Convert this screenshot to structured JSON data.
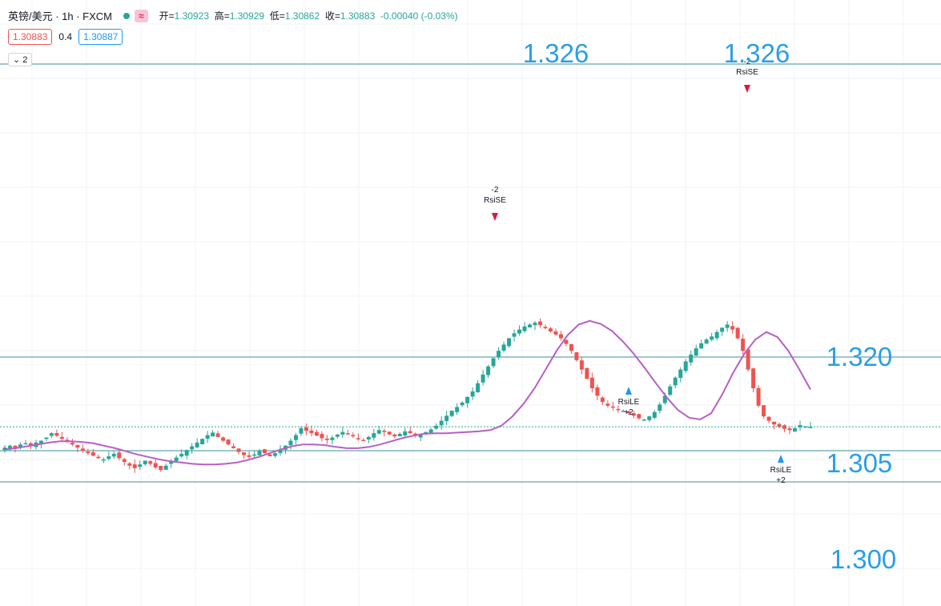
{
  "header": {
    "symbol": "英镑/美元 · 1h · FXCM",
    "open_label": "开=",
    "open": "1.30923",
    "high_label": "高=",
    "high": "1.30929",
    "low_label": "低=",
    "low": "1.30862",
    "close_label": "收=",
    "close": "1.30883",
    "change": "-0.00040 (-0.03%)",
    "approx_icon": "≈",
    "status_icon": "green-dot-icon"
  },
  "quote": {
    "bid": "1.30883",
    "spread": "0.4",
    "ask": "1.30887"
  },
  "indicator_toggle": {
    "label": "2",
    "icon": "chevron-down-icon"
  },
  "colors": {
    "up": "#26a69a",
    "down": "#ef5350",
    "ma": "#b75fc4",
    "level_line": "#3a8f9c",
    "label": "#2a9ee6",
    "signal_short": "#e0173d",
    "signal_long": "#2196f3"
  },
  "chart_data": {
    "type": "candlestick",
    "level_labels": [
      "1.326",
      "1.326",
      "1.320",
      "1.305",
      "1.300"
    ],
    "price_levels": [
      1.326,
      1.32,
      1.305,
      1.3
    ],
    "close_series": [
      1.3055,
      1.3058,
      1.3054,
      1.306,
      1.3062,
      1.3058,
      1.3063,
      1.3066,
      1.3071,
      1.3078,
      1.3074,
      1.3069,
      1.3065,
      1.306,
      1.3055,
      1.305,
      1.3046,
      1.3042,
      1.3038,
      1.3036,
      1.3041,
      1.3045,
      1.3038,
      1.3032,
      1.3026,
      1.3022,
      1.3028,
      1.3034,
      1.3029,
      1.3023,
      1.3019,
      1.3026,
      1.3033,
      1.3039,
      1.3045,
      1.3051,
      1.3057,
      1.3063,
      1.3069,
      1.3075,
      1.3079,
      1.3072,
      1.3066,
      1.306,
      1.3054,
      1.3048,
      1.3043,
      1.304,
      1.3044,
      1.305,
      1.3046,
      1.3041,
      1.3046,
      1.3052,
      1.3058,
      1.3066,
      1.3075,
      1.3086,
      1.3082,
      1.3078,
      1.3074,
      1.307,
      1.3067,
      1.3071,
      1.3076,
      1.308,
      1.3077,
      1.3073,
      1.307,
      1.3067,
      1.3072,
      1.3078,
      1.3083,
      1.308,
      1.3076,
      1.3073,
      1.3077,
      1.3081,
      1.3078,
      1.3074,
      1.3077,
      1.308,
      1.3084,
      1.309,
      1.3098,
      1.3106,
      1.3114,
      1.312,
      1.3127,
      1.3136,
      1.3145,
      1.3158,
      1.3172,
      1.3185,
      1.3198,
      1.321,
      1.322,
      1.323,
      1.3238,
      1.3244,
      1.3249,
      1.3252,
      1.3255,
      1.3251,
      1.3246,
      1.3241,
      1.3236,
      1.323,
      1.3221,
      1.321,
      1.3195,
      1.318,
      1.3165,
      1.315,
      1.3138,
      1.3128,
      1.3122,
      1.3119,
      1.3116,
      1.3114,
      1.311,
      1.3106,
      1.3102,
      1.31,
      1.3105,
      1.3112,
      1.3124,
      1.3138,
      1.3153,
      1.3167,
      1.318,
      1.3193,
      1.3204,
      1.3214,
      1.3222,
      1.3228,
      1.3233,
      1.324,
      1.3247,
      1.3252,
      1.3244,
      1.323,
      1.321,
      1.318,
      1.315,
      1.3122,
      1.3105,
      1.3098,
      1.3092,
      1.3088,
      1.3085,
      1.3083,
      1.3086,
      1.3091,
      1.3089,
      1.3088
    ],
    "ma_series": [
      1.3052,
      1.3054,
      1.3057,
      1.306,
      1.3063,
      1.3065,
      1.3065,
      1.3064,
      1.3062,
      1.3058,
      1.3054,
      1.3049,
      1.3044,
      1.304,
      1.3036,
      1.3033,
      1.3031,
      1.3029,
      1.3028,
      1.3028,
      1.3029,
      1.3031,
      1.3035,
      1.304,
      1.3046,
      1.3052,
      1.3057,
      1.306,
      1.306,
      1.3059,
      1.3056,
      1.3054,
      1.3054,
      1.3056,
      1.306,
      1.3065,
      1.307,
      1.3074,
      1.3077,
      1.3078,
      1.3078,
      1.3079,
      1.308,
      1.3081,
      1.3083,
      1.309,
      1.3105,
      1.3125,
      1.315,
      1.318,
      1.321,
      1.3235,
      1.3252,
      1.3258,
      1.3253,
      1.3242,
      1.3225,
      1.3205,
      1.3182,
      1.3158,
      1.3135,
      1.3115,
      1.3103,
      1.31,
      1.311,
      1.314,
      1.3175,
      1.3205,
      1.3228,
      1.324,
      1.3232,
      1.321,
      1.318,
      1.3148
    ],
    "signals": [
      {
        "label": "RsiSE",
        "qty": "-2",
        "dir": "short"
      },
      {
        "label": "RsiLE",
        "qty": "+2",
        "dir": "long"
      },
      {
        "label": "RsiSE",
        "qty": "-2",
        "dir": "short"
      },
      {
        "label": "RsiLE",
        "qty": "+2",
        "dir": "long"
      }
    ],
    "current_price": 1.30883
  }
}
